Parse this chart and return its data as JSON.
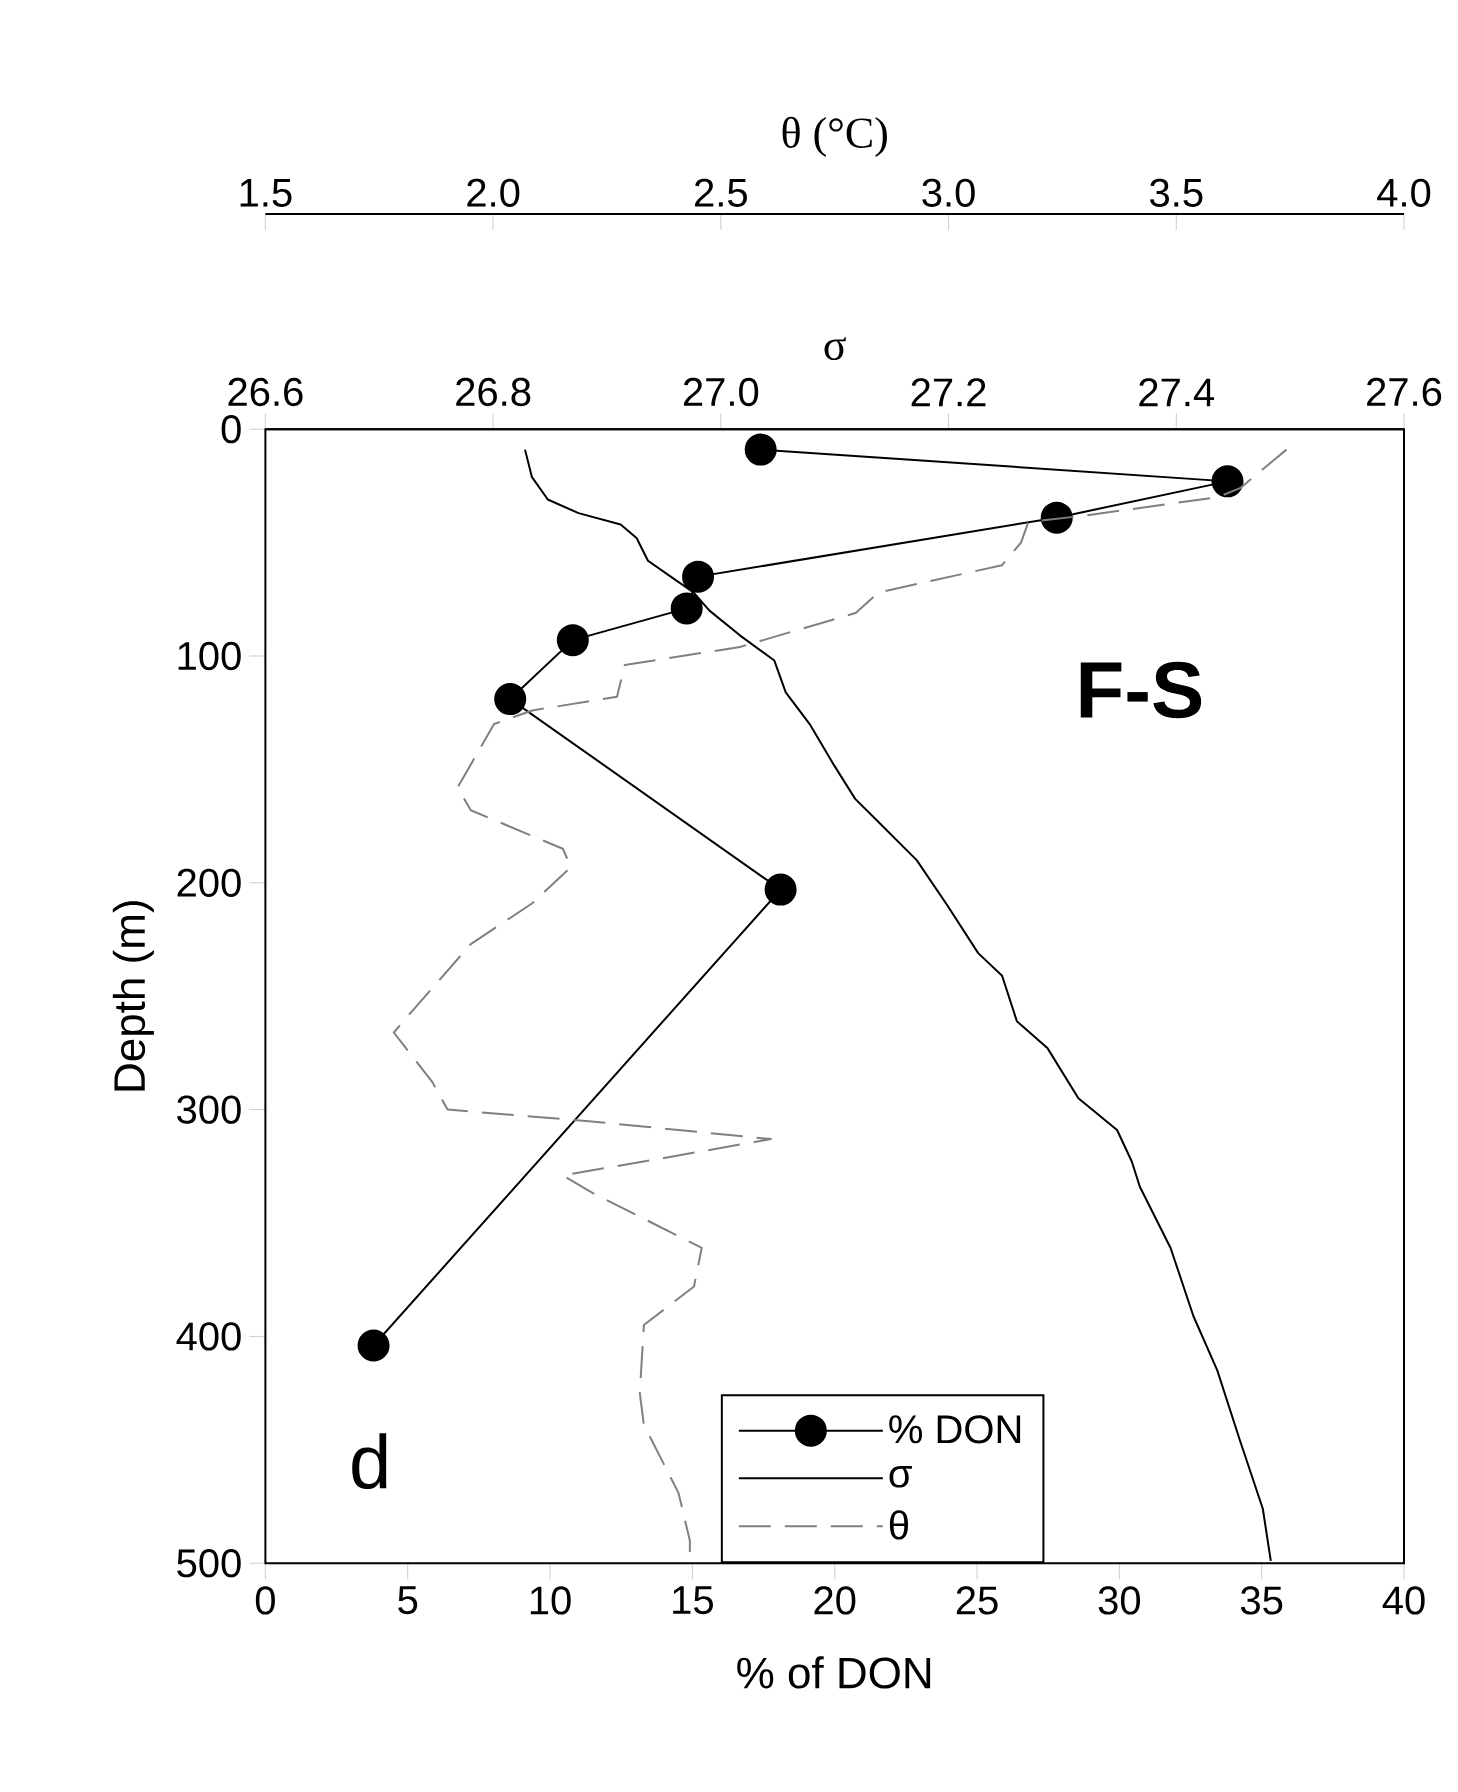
{
  "chart_data": [
    {
      "type": "line",
      "xlabel": "% of DON",
      "ylabel": "Depth (m)",
      "x2label": "σ",
      "xlim": [
        0,
        40
      ],
      "xticks": [
        0,
        5,
        10,
        15,
        20,
        25,
        30,
        35,
        40
      ],
      "x2lim": [
        26.6,
        27.6
      ],
      "x2ticks": [
        26.6,
        26.8,
        {
          "value": 27.0,
          "label": "27.0"
        },
        27.2,
        27.4,
        27.6
      ],
      "ylim": [
        500,
        0
      ],
      "yticks": [
        0,
        100,
        200,
        300,
        400,
        500
      ],
      "legend": "bottom",
      "annotations": [
        "F-S",
        "d"
      ],
      "series": [
        {
          "name": "% DON",
          "color": "#000000",
          "marker": "circle",
          "x": [
            17.4,
            33.8,
            27.8,
            15.2,
            14.8,
            10.8,
            8.6,
            18.1,
            3.8
          ],
          "values": [
            9,
            23,
            39,
            65,
            79,
            93,
            119,
            203,
            404
          ]
        },
        {
          "name": "σ",
          "axis": "x2",
          "color": "#000000",
          "x": [
            26.828,
            26.834,
            26.848,
            26.875,
            26.912,
            26.926,
            26.936,
            26.956,
            26.976,
            26.99,
            27.017,
            27.047,
            27.057,
            27.078,
            27.098,
            27.118,
            27.138,
            27.172,
            27.199,
            27.226,
            27.247,
            27.26,
            27.287,
            27.314,
            27.348,
            27.361,
            27.368,
            27.395,
            27.415,
            27.436,
            27.456,
            27.476,
            27.483
          ],
          "values": [
            9,
            21,
            31,
            37,
            42,
            48,
            58,
            65,
            72,
            80,
            91,
            102,
            116,
            130,
            147,
            163,
            173,
            190,
            210,
            231,
            241,
            261,
            273,
            295,
            309,
            323,
            334,
            361,
            391,
            415,
            446,
            476,
            499
          ]
        }
      ]
    },
    {
      "type": "line",
      "xlabel": "θ (°C)",
      "xlim": [
        1.5,
        4.0
      ],
      "xticks": [
        1.5,
        {
          "value": 2.0,
          "label": "2.0"
        },
        2.5,
        {
          "value": 3.0,
          "label": "3.0"
        },
        3.5,
        {
          "value": 4.0,
          "label": "4.0"
        }
      ],
      "ylim": [
        500,
        0
      ],
      "tick_labels": "x",
      "series": [
        {
          "name": "θ",
          "color": "#808080",
          "line_style": "dashed",
          "x": [
            3.742,
            3.64,
            3.59,
            3.302,
            3.175,
            3.159,
            3.117,
            2.846,
            2.796,
            2.542,
            2.289,
            2.272,
            2.086,
            2.002,
            1.922,
            1.951,
            2.153,
            2.171,
            2.086,
            1.951,
            1.816,
            1.782,
            1.867,
            1.9,
            2.204,
            2.61,
            2.356,
            2.153,
            2.221,
            2.458,
            2.441,
            2.331,
            2.322,
            2.331,
            2.407,
            2.432,
            2.432
          ],
          "values": [
            9,
            26,
            30,
            38,
            41,
            50,
            60,
            72,
            81,
            96,
            104,
            118,
            124,
            130,
            158,
            168,
            185,
            193,
            209,
            227,
            258,
            266,
            288,
            300,
            305,
            313,
            322,
            329,
            337,
            361,
            378,
            395,
            425,
            439,
            469,
            490,
            499
          ]
        }
      ]
    }
  ]
}
